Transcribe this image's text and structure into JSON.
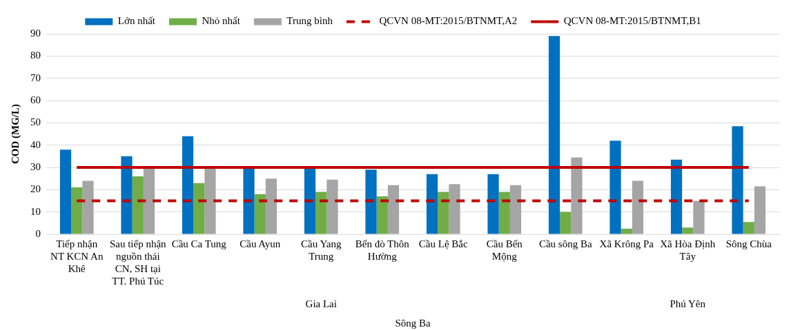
{
  "chart_data": {
    "type": "bar",
    "ylabel": "COD (MG/L)",
    "categories": [
      "Tiếp nhận NT KCN An Khê",
      "Sau tiếp nhận nguồn thải CN, SH tại TT. Phú Túc",
      "Cầu Ca Tung",
      "Cầu Ayun",
      "Cầu Yang Trung",
      "Bến đò Thôn Hường",
      "Cầu Lệ Bắc",
      "Cầu Bến Mộng",
      "Cầu sông Ba",
      "Xã Krông Pa",
      "Xã Hòa Định Tây",
      "Sông Chùa"
    ],
    "series": [
      {
        "name": "Lớn nhất",
        "color": "#0070c0",
        "values": [
          38,
          35,
          44,
          30,
          30,
          29,
          27,
          27,
          89,
          42,
          33.5,
          48.5
        ]
      },
      {
        "name": "Nhỏ nhất",
        "color": "#70ad47",
        "values": [
          21,
          26,
          23,
          18,
          19,
          17,
          19,
          19,
          10,
          2.5,
          3,
          5.5
        ]
      },
      {
        "name": "Trung bình",
        "color": "#a5a5a5",
        "values": [
          24,
          30,
          30,
          25,
          24.5,
          22,
          22.5,
          22,
          34.5,
          24,
          15,
          21.5
        ]
      },
      {
        "name": "QCVN 08-MT:2015/BTNMT,A2",
        "color": "#c00000",
        "type": "line",
        "line_style": "dashed",
        "values": [
          15,
          15,
          15,
          15,
          15,
          15,
          15,
          15,
          15,
          15,
          15,
          15
        ]
      },
      {
        "name": "QCVN 08-MT:2015/BTNMT,B1",
        "color": "#c00000",
        "type": "line",
        "line_style": "solid",
        "values": [
          30,
          30,
          30,
          30,
          30,
          30,
          30,
          30,
          30,
          30,
          30,
          30
        ]
      }
    ],
    "annotations": [
      "Gia Lai",
      "Phú Yên",
      "Sông Ba"
    ],
    "ylim": [
      0,
      90
    ],
    "yticks": [
      0,
      10,
      20,
      30,
      40,
      50,
      60,
      70,
      80,
      90
    ],
    "grid": "y",
    "legend": "top",
    "marker": "none"
  }
}
